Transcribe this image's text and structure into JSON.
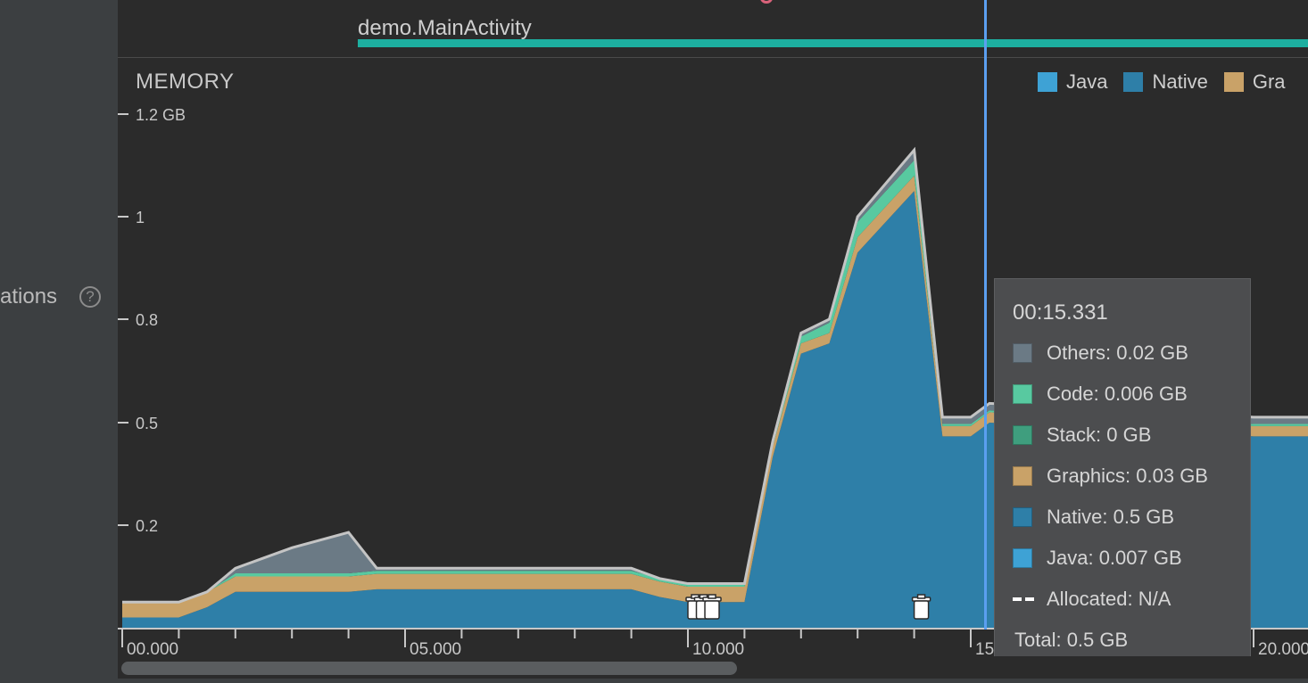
{
  "sidebar": {
    "label_text": "ations",
    "help_glyph": "?"
  },
  "activity": {
    "label": "demo.MainActivity",
    "bar_color": "#1dafa0"
  },
  "chart_panel": {
    "title": "MEMORY",
    "legend": [
      {
        "label": "Java",
        "color": "#3ea2d5"
      },
      {
        "label": "Native",
        "color": "#2e7fa8"
      },
      {
        "label": "Gra",
        "color": "#c9a268"
      }
    ]
  },
  "tooltip": {
    "time": "00:15.331",
    "rows": [
      {
        "label": "Others: 0.02 GB",
        "color": "#6b7a85"
      },
      {
        "label": "Code: 0.006 GB",
        "color": "#58c9a0"
      },
      {
        "label": "Stack: 0 GB",
        "color": "#3f9e7e"
      },
      {
        "label": "Graphics: 0.03 GB",
        "color": "#c9a268"
      },
      {
        "label": "Native: 0.5 GB",
        "color": "#2e7fa8"
      },
      {
        "label": "Java: 0.007 GB",
        "color": "#3ea2d5"
      }
    ],
    "allocated": "Allocated: N/A",
    "total": "Total: 0.5 GB"
  },
  "chart_data": {
    "type": "area",
    "title": "MEMORY",
    "ylabel": "",
    "xlabel": "",
    "y_tick_labels": [
      "1.2 GB",
      "1",
      "0.8",
      "0.5",
      "0.2"
    ],
    "y_tick_values": [
      1.2,
      1.0,
      0.8,
      0.5,
      0.2
    ],
    "x_tick_labels": [
      "00.000",
      "05.000",
      "10.000",
      "15",
      "20.000"
    ],
    "x_tick_values": [
      0,
      5,
      10,
      15,
      20
    ],
    "xlim": [
      0,
      21
    ],
    "ylim": [
      0,
      1.2
    ],
    "cursor_x": 15.331,
    "gc_event_times": [
      10.0,
      10.15,
      10.3,
      14.0
    ],
    "x": [
      0,
      1,
      1.5,
      2,
      2.5,
      3,
      4,
      4.5,
      5,
      6,
      7,
      8,
      9,
      9.5,
      10,
      10.5,
      11,
      11.5,
      12,
      12.5,
      13,
      14,
      14.5,
      15,
      15.331,
      20,
      21
    ],
    "series": [
      {
        "name": "Native",
        "color": "#2e7fa8",
        "values": [
          0.02,
          0.02,
          0.04,
          0.07,
          0.07,
          0.07,
          0.07,
          0.075,
          0.075,
          0.075,
          0.075,
          0.075,
          0.075,
          0.06,
          0.05,
          0.05,
          0.05,
          0.4,
          0.7,
          0.73,
          0.93,
          1.05,
          0.46,
          0.46,
          0.5,
          0.46,
          0.46
        ]
      },
      {
        "name": "Graphics",
        "color": "#c9a268",
        "values": [
          0.03,
          0.03,
          0.03,
          0.03,
          0.03,
          0.03,
          0.03,
          0.03,
          0.03,
          0.03,
          0.03,
          0.03,
          0.03,
          0.03,
          0.03,
          0.03,
          0.03,
          0.03,
          0.03,
          0.03,
          0.03,
          0.03,
          0.03,
          0.03,
          0.03,
          0.03,
          0.03
        ]
      },
      {
        "name": "Code",
        "color": "#58c9a0",
        "values": [
          0,
          0,
          0,
          0.006,
          0.006,
          0.006,
          0.006,
          0.006,
          0.006,
          0.006,
          0.006,
          0.006,
          0.006,
          0.006,
          0.006,
          0.006,
          0.006,
          0.006,
          0.02,
          0.03,
          0.03,
          0.03,
          0.006,
          0.006,
          0.006,
          0.006,
          0.006
        ]
      },
      {
        "name": "Others",
        "color": "#6b7a85",
        "values": [
          0,
          0,
          0,
          0.01,
          0.03,
          0.05,
          0.08,
          0.005,
          0.005,
          0.005,
          0.005,
          0.005,
          0.005,
          0,
          0,
          0,
          0,
          0.01,
          0.01,
          0.01,
          0.01,
          0.02,
          0.02,
          0.02,
          0.02,
          0.02,
          0.02
        ]
      }
    ]
  }
}
